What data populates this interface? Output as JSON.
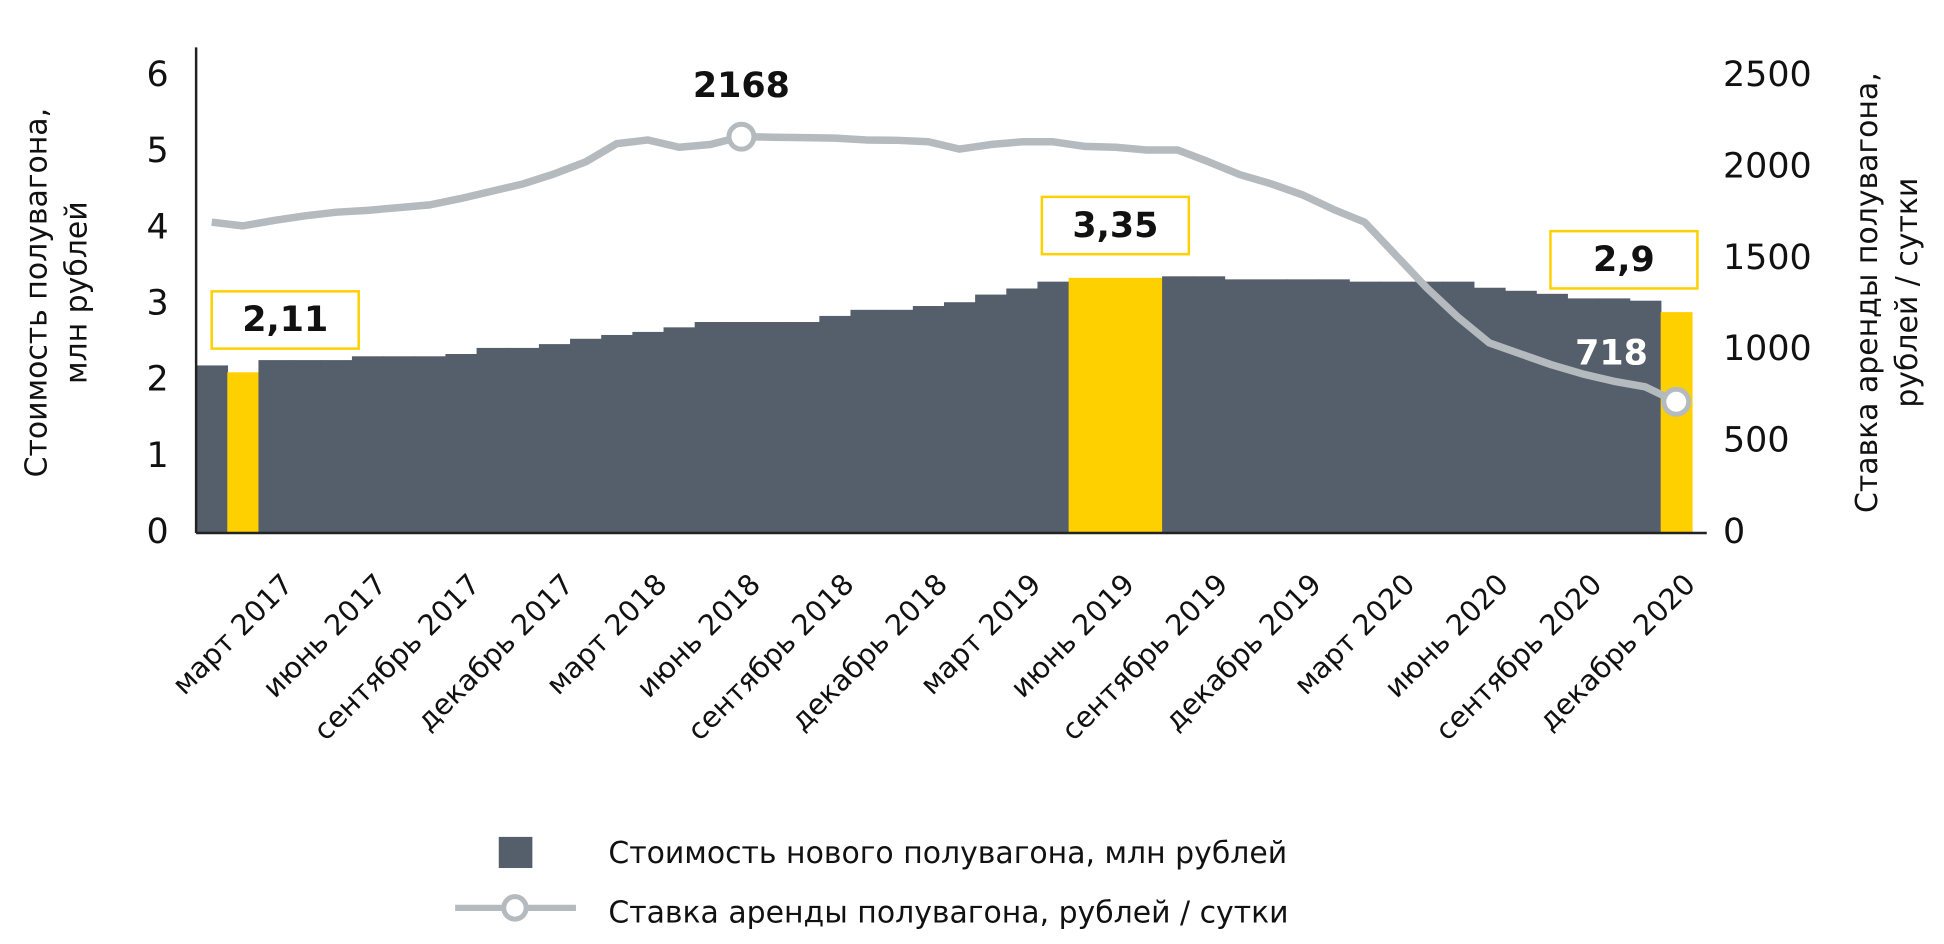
{
  "chart_data": {
    "type": "bar",
    "categories": [
      null,
      null,
      "март 2017",
      null,
      null,
      "июнь 2017",
      null,
      null,
      "сентябрь 2017",
      null,
      null,
      "декабрь 2017",
      null,
      null,
      "март 2018",
      null,
      null,
      "июнь 2018",
      null,
      null,
      "сентябрь 2018",
      null,
      null,
      "декабрь 2018",
      null,
      null,
      "март 2019",
      null,
      null,
      "июнь 2019",
      null,
      null,
      "сентябрь 2019",
      null,
      null,
      "декабрь 2019",
      null,
      null,
      "март 2020",
      null,
      null,
      "июнь 2020",
      null,
      null,
      "сентябрь 2020",
      null,
      null,
      "декабрь 2020"
    ],
    "ylabel": [
      "Стоимость полувагона,",
      "млн рублей"
    ],
    "y2label": [
      "Ставка аренды полувагона,",
      "рублей / сутки"
    ],
    "ylim": [
      0,
      6
    ],
    "yticks": [
      0,
      1,
      2,
      3,
      4,
      5,
      6
    ],
    "y2lim": [
      0,
      2500
    ],
    "y2ticks": [
      0,
      500,
      1000,
      1500,
      2000,
      2500
    ],
    "series": [
      {
        "name": "Стоимость нового полувагона, млн рублей",
        "color": "#555e6b",
        "values": [
          2.2,
          2.11,
          2.27,
          2.27,
          2.27,
          2.32,
          2.32,
          2.32,
          2.35,
          2.43,
          2.43,
          2.48,
          2.55,
          2.6,
          2.64,
          2.7,
          2.77,
          2.77,
          2.77,
          2.77,
          2.85,
          2.93,
          2.93,
          2.98,
          3.03,
          3.13,
          3.21,
          3.3,
          3.35,
          3.35,
          3.35,
          3.37,
          3.37,
          3.33,
          3.33,
          3.33,
          3.33,
          3.3,
          3.3,
          3.3,
          3.3,
          3.22,
          3.18,
          3.14,
          3.08,
          3.08,
          3.05,
          2.9
        ],
        "colors": [
          "#555e6b",
          "#ffd000",
          "#555e6b",
          "#555e6b",
          "#555e6b",
          "#555e6b",
          "#555e6b",
          "#555e6b",
          "#555e6b",
          "#555e6b",
          "#555e6b",
          "#555e6b",
          "#555e6b",
          "#555e6b",
          "#555e6b",
          "#555e6b",
          "#555e6b",
          "#555e6b",
          "#555e6b",
          "#555e6b",
          "#555e6b",
          "#555e6b",
          "#555e6b",
          "#555e6b",
          "#555e6b",
          "#555e6b",
          "#555e6b",
          "#555e6b",
          "#ffd000",
          "#ffd000",
          "#ffd000",
          "#555e6b",
          "#555e6b",
          "#555e6b",
          "#555e6b",
          "#555e6b",
          "#555e6b",
          "#555e6b",
          "#555e6b",
          "#555e6b",
          "#555e6b",
          "#555e6b",
          "#555e6b",
          "#555e6b",
          "#555e6b",
          "#555e6b",
          "#555e6b",
          "#ffd000"
        ],
        "value_labels": [
          null,
          "2,11",
          null,
          null,
          null,
          null,
          null,
          null,
          null,
          null,
          null,
          null,
          null,
          null,
          null,
          null,
          null,
          null,
          null,
          null,
          null,
          null,
          null,
          null,
          null,
          null,
          null,
          null,
          null,
          "3,35",
          null,
          null,
          null,
          null,
          null,
          null,
          null,
          null,
          null,
          null,
          null,
          null,
          null,
          null,
          null,
          null,
          null,
          "2,9"
        ]
      },
      {
        "name": "Ставка аренды полувагона, рублей / сутки",
        "color": "#b4babe",
        "type": "line",
        "axis": "y2",
        "values": [
          1700,
          1680,
          1710,
          1735,
          1755,
          1765,
          1780,
          1795,
          1830,
          1870,
          1910,
          1965,
          2030,
          2130,
          2150,
          2110,
          2125,
          2168,
          2165,
          2163,
          2160,
          2150,
          2148,
          2140,
          2100,
          2125,
          2140,
          2140,
          2115,
          2110,
          2095,
          2095,
          2030,
          1960,
          1910,
          1850,
          1770,
          1700,
          1520,
          1340,
          1180,
          1040,
          980,
          920,
          870,
          830,
          800,
          718
        ],
        "value_labels": [
          null,
          null,
          null,
          null,
          null,
          null,
          null,
          null,
          null,
          null,
          null,
          null,
          null,
          null,
          null,
          null,
          null,
          "2168",
          null,
          null,
          null,
          null,
          null,
          null,
          null,
          null,
          null,
          null,
          null,
          null,
          null,
          null,
          null,
          null,
          null,
          null,
          null,
          null,
          null,
          null,
          null,
          null,
          null,
          null,
          null,
          null,
          null,
          "718"
        ]
      }
    ]
  }
}
